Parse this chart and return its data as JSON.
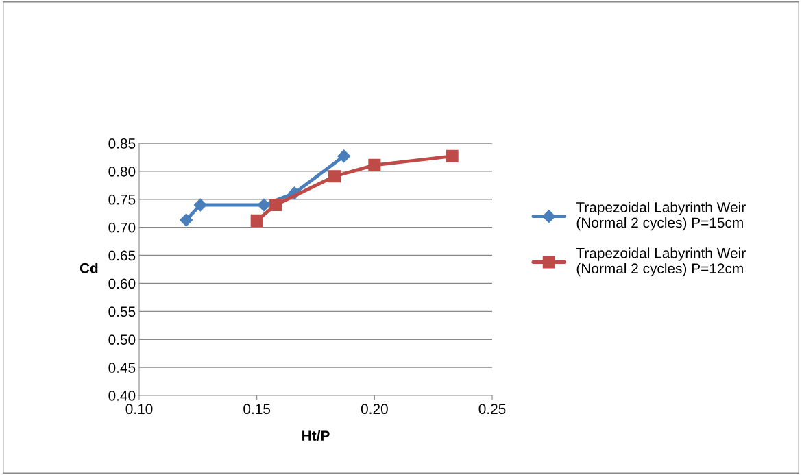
{
  "chart_data": {
    "type": "line",
    "xlabel": "Ht/P",
    "ylabel": "Cd",
    "xlim": [
      0.1,
      0.25
    ],
    "xticks": [
      {
        "value": 0.1,
        "label": "0.10"
      },
      {
        "value": 0.15,
        "label": "0.15"
      },
      {
        "value": 0.2,
        "label": "0.20"
      },
      {
        "value": 0.25,
        "label": "0.25"
      }
    ],
    "ylim": [
      0.4,
      0.85
    ],
    "yticks": [
      {
        "value": 0.4,
        "label": "0.40"
      },
      {
        "value": 0.45,
        "label": "0.45"
      },
      {
        "value": 0.5,
        "label": "0.50"
      },
      {
        "value": 0.55,
        "label": "0.55"
      },
      {
        "value": 0.6,
        "label": "0.60"
      },
      {
        "value": 0.65,
        "label": "0.65"
      },
      {
        "value": 0.7,
        "label": "0.70"
      },
      {
        "value": 0.75,
        "label": "0.75"
      },
      {
        "value": 0.8,
        "label": "0.80"
      },
      {
        "value": 0.85,
        "label": "0.85"
      }
    ],
    "grid": "y",
    "legend": "right",
    "line_style": "solid",
    "series": [
      {
        "name": "Trapezoidal Labyrinth Weir\n(Normal 2 cycles) P=15cm",
        "color": "#4a7ebb",
        "marker": "diamond",
        "x": [
          0.12,
          0.126,
          0.153,
          0.166,
          0.187
        ],
        "values": [
          0.713,
          0.74,
          0.74,
          0.761,
          0.827
        ]
      },
      {
        "name": "Trapezoidal Labyrinth Weir\n(Normal 2 cycles) P=12cm",
        "color": "#be4b48",
        "marker": "square",
        "x": [
          0.15,
          0.158,
          0.183,
          0.2,
          0.233
        ],
        "values": [
          0.712,
          0.74,
          0.791,
          0.811,
          0.827
        ]
      }
    ]
  }
}
